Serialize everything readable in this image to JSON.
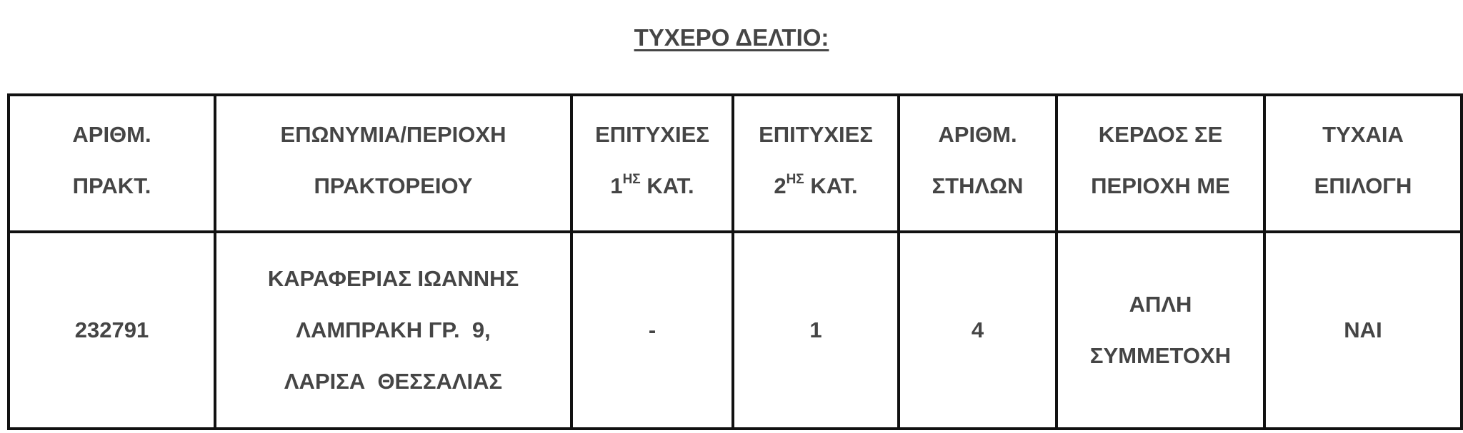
{
  "title": "ΤΥΧΕΡΟ ΔΕΛΤΙΟ:",
  "table": {
    "headers": [
      {
        "line1": "ΑΡΙΘΜ.",
        "line2": "ΠΡΑΚΤ."
      },
      {
        "line1": "ΕΠΩΝΥΜΙΑ/ΠΕΡΙΟΧΗ",
        "line2": "ΠΡΑΚΤΟΡΕΙΟΥ"
      },
      {
        "line1": "ΕΠΙΤΥΧΙΕΣ",
        "line2_num": "1",
        "line2_sup": "ΗΣ",
        "line2_rest": "ΚΑΤ."
      },
      {
        "line1": "ΕΠΙΤΥΧΙΕΣ",
        "line2_num": "2",
        "line2_sup": "ΗΣ",
        "line2_rest": "ΚΑΤ."
      },
      {
        "line1": "ΑΡΙΘΜ.",
        "line2": "ΣΤΗΛΩΝ"
      },
      {
        "line1": "ΚΕΡΔΟΣ ΣΕ",
        "line2": "ΠΕΡΙΟΧΗ ΜΕ"
      },
      {
        "line1": "ΤΥΧΑΙΑ",
        "line2": "ΕΠΙΛΟΓΗ"
      }
    ],
    "row": {
      "agency_number": "232791",
      "name_line1": "ΚΑΡΑΦΕΡΙΑΣ ΙΩΑΝΝΗΣ",
      "name_line2": "ΛΑΜΠΡΑΚΗ ΓΡ.  9,",
      "name_line3": "ΛΑΡΙΣΑ  ΘΕΣΣΑΛΙΑΣ",
      "first_category_wins": "-",
      "second_category_wins": "1",
      "columns_count": "4",
      "win_area_line1": "ΑΠΛΗ",
      "win_area_line2": "ΣΥΜΜΕΤΟΧΗ",
      "random_pick": "ΝΑΙ"
    }
  }
}
